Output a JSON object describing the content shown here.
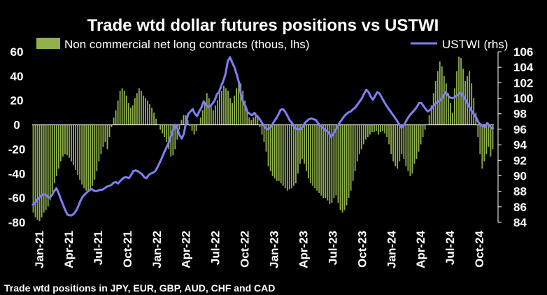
{
  "chart_data": {
    "type": "bar+line",
    "title": "Trade wtd dollar futures positions  vs USTWI",
    "footnote": "Trade wtd positions in JPY, EUR, GBP, AUD, CHF and CAD",
    "colors": {
      "bars": "#8fb04b",
      "line": "#7f7ff2",
      "background": "#000000",
      "text": "#ffffff"
    },
    "x_tick_labels": [
      "Jan-21",
      "Apr-21",
      "Jul-21",
      "Oct-21",
      "Jan-22",
      "Apr-22",
      "Jul-22",
      "Oct-22",
      "Jan-23",
      "Apr-23",
      "Jul-23",
      "Oct-23",
      "Jan-24",
      "Apr-24",
      "Jul-24",
      "Oct-24"
    ],
    "left_axis": {
      "label": "Non commercial net long contracts (thous, lhs)",
      "ylim": [
        -80,
        60
      ],
      "ticks": [
        "60",
        "40",
        "20",
        "0",
        "-20",
        "-40",
        "-60",
        "-80"
      ]
    },
    "right_axis": {
      "label": "USTWI (rhs)",
      "ylim": [
        84,
        106
      ],
      "ticks": [
        "106",
        "104",
        "102",
        "100",
        "98",
        "96",
        "94",
        "92",
        "90",
        "88",
        "86",
        "84"
      ]
    },
    "series": [
      {
        "name": "Non commercial net long contracts (thous, lhs)",
        "axis": "left",
        "type": "bar",
        "x_start": "2021-01",
        "frequency": "weekly",
        "values": [
          -72,
          -76,
          -78,
          -79,
          -76,
          -72,
          -70,
          -67,
          -62,
          -55,
          -48,
          -42,
          -36,
          -30,
          -26,
          -24,
          -25,
          -27,
          -30,
          -33,
          -37,
          -41,
          -45,
          -49,
          -52,
          -54,
          -55,
          -54,
          -50,
          -45,
          -38,
          -30,
          -24,
          -18,
          -14,
          -20,
          -10,
          -2,
          6,
          12,
          20,
          28,
          30,
          28,
          24,
          18,
          14,
          16,
          22,
          26,
          30,
          28,
          24,
          22,
          20,
          17,
          14,
          10,
          5,
          0,
          -4,
          -7,
          -10,
          -14,
          -20,
          -26,
          -25,
          -20,
          -12,
          -4,
          4,
          8,
          8,
          4,
          -1,
          -5,
          -8,
          -5,
          0,
          6,
          12,
          18,
          26,
          22,
          15,
          12,
          16,
          20,
          26,
          28,
          32,
          30,
          28,
          22,
          18,
          24,
          30,
          36,
          34,
          28,
          20,
          12,
          6,
          4,
          6,
          10,
          8,
          -2,
          -8,
          -14,
          -22,
          -34,
          -38,
          -42,
          -44,
          -46,
          -46,
          -48,
          -50,
          -52,
          -54,
          -53,
          -52,
          -50,
          -48,
          -40,
          -32,
          -28,
          -32,
          -38,
          -44,
          -48,
          -50,
          -52,
          -54,
          -56,
          -58,
          -60,
          -60,
          -62,
          -65,
          -64,
          -60,
          -58,
          -64,
          -70,
          -72,
          -70,
          -66,
          -60,
          -54,
          -46,
          -38,
          -30,
          -24,
          -20,
          -16,
          -12,
          -10,
          -8,
          -6,
          -6,
          -5,
          -8,
          -6,
          -5,
          -7,
          -10,
          -16,
          -24,
          -30,
          -34,
          -36,
          -30,
          -24,
          -28,
          -34,
          -38,
          -42,
          -40,
          -32,
          -28,
          -22,
          -16,
          -10,
          -4,
          0,
          8,
          16,
          26,
          36,
          44,
          52,
          48,
          40,
          34,
          26,
          18,
          10,
          30,
          44,
          56,
          55,
          46,
          36,
          40,
          44,
          34,
          22,
          10,
          -10,
          -24,
          -36,
          -30,
          -24,
          -18,
          -26,
          -20
        ]
      },
      {
        "name": "USTWI (rhs)",
        "axis": "right",
        "type": "line",
        "values": [
          86.2,
          86.4,
          86.8,
          87.1,
          87.4,
          87.6,
          87.6,
          87.3,
          87.2,
          87.5,
          88.0,
          88.4,
          87.8,
          87.0,
          86.3,
          85.6,
          85.0,
          84.9,
          84.9,
          85.1,
          85.5,
          86.1,
          86.8,
          87.3,
          87.6,
          87.9,
          88.1,
          88.3,
          88.1,
          88.0,
          88.1,
          88.2,
          88.2,
          88.4,
          88.6,
          88.7,
          88.8,
          89.1,
          89.2,
          89.0,
          89.3,
          89.6,
          89.8,
          89.8,
          89.7,
          90.1,
          90.6,
          90.7,
          90.6,
          90.4,
          90.2,
          89.8,
          89.7,
          90.1,
          90.3,
          90.4,
          90.6,
          91.1,
          91.7,
          92.3,
          93.0,
          93.6,
          94.2,
          95.0,
          95.8,
          96.6,
          96.1,
          95.3,
          94.8,
          95.4,
          96.9,
          98.0,
          98.3,
          98.6,
          98.0,
          97.7,
          98.3,
          98.8,
          99.6,
          99.2,
          98.9,
          99.0,
          99.3,
          99.7,
          100.5,
          100.8,
          101.6,
          102.3,
          103.2,
          104.8,
          105.3,
          104.6,
          104.0,
          103.1,
          102.1,
          100.4,
          99.5,
          99.0,
          98.2,
          98.0,
          97.8,
          98.1,
          97.7,
          97.5,
          97.1,
          96.6,
          96.2,
          96.0,
          96.1,
          96.5,
          97.0,
          97.4,
          97.9,
          98.5,
          98.6,
          98.3,
          97.8,
          97.2,
          96.9,
          96.4,
          96.1,
          96.0,
          96.0,
          96.3,
          96.8,
          97.1,
          97.3,
          97.4,
          97.3,
          97.2,
          96.8,
          96.5,
          96.2,
          95.9,
          95.8,
          95.5,
          95.0,
          95.4,
          95.9,
          96.4,
          96.9,
          97.3,
          97.7,
          98.0,
          98.2,
          98.3,
          98.6,
          98.8,
          99.2,
          99.6,
          100.0,
          100.6,
          101.1,
          100.8,
          100.2,
          99.8,
          100.3,
          100.8,
          100.6,
          100.1,
          99.6,
          99.1,
          98.7,
          98.3,
          97.9,
          97.5,
          97.1,
          96.6,
          96.2,
          96.5,
          97.0,
          97.5,
          97.9,
          98.2,
          98.5,
          98.9,
          99.4,
          99.4,
          99.0,
          98.6,
          98.3,
          98.5,
          98.8,
          99.2,
          99.4,
          99.6,
          99.8,
          100.3,
          100.8,
          100.4,
          100.1,
          100.0,
          100.1,
          100.3,
          100.5,
          100.7,
          100.3,
          99.8,
          99.3,
          98.8,
          98.3,
          97.9,
          97.5,
          96.9,
          96.6,
          96.4,
          96.3,
          96.8,
          96.5,
          96.1,
          96.2
        ]
      }
    ]
  }
}
